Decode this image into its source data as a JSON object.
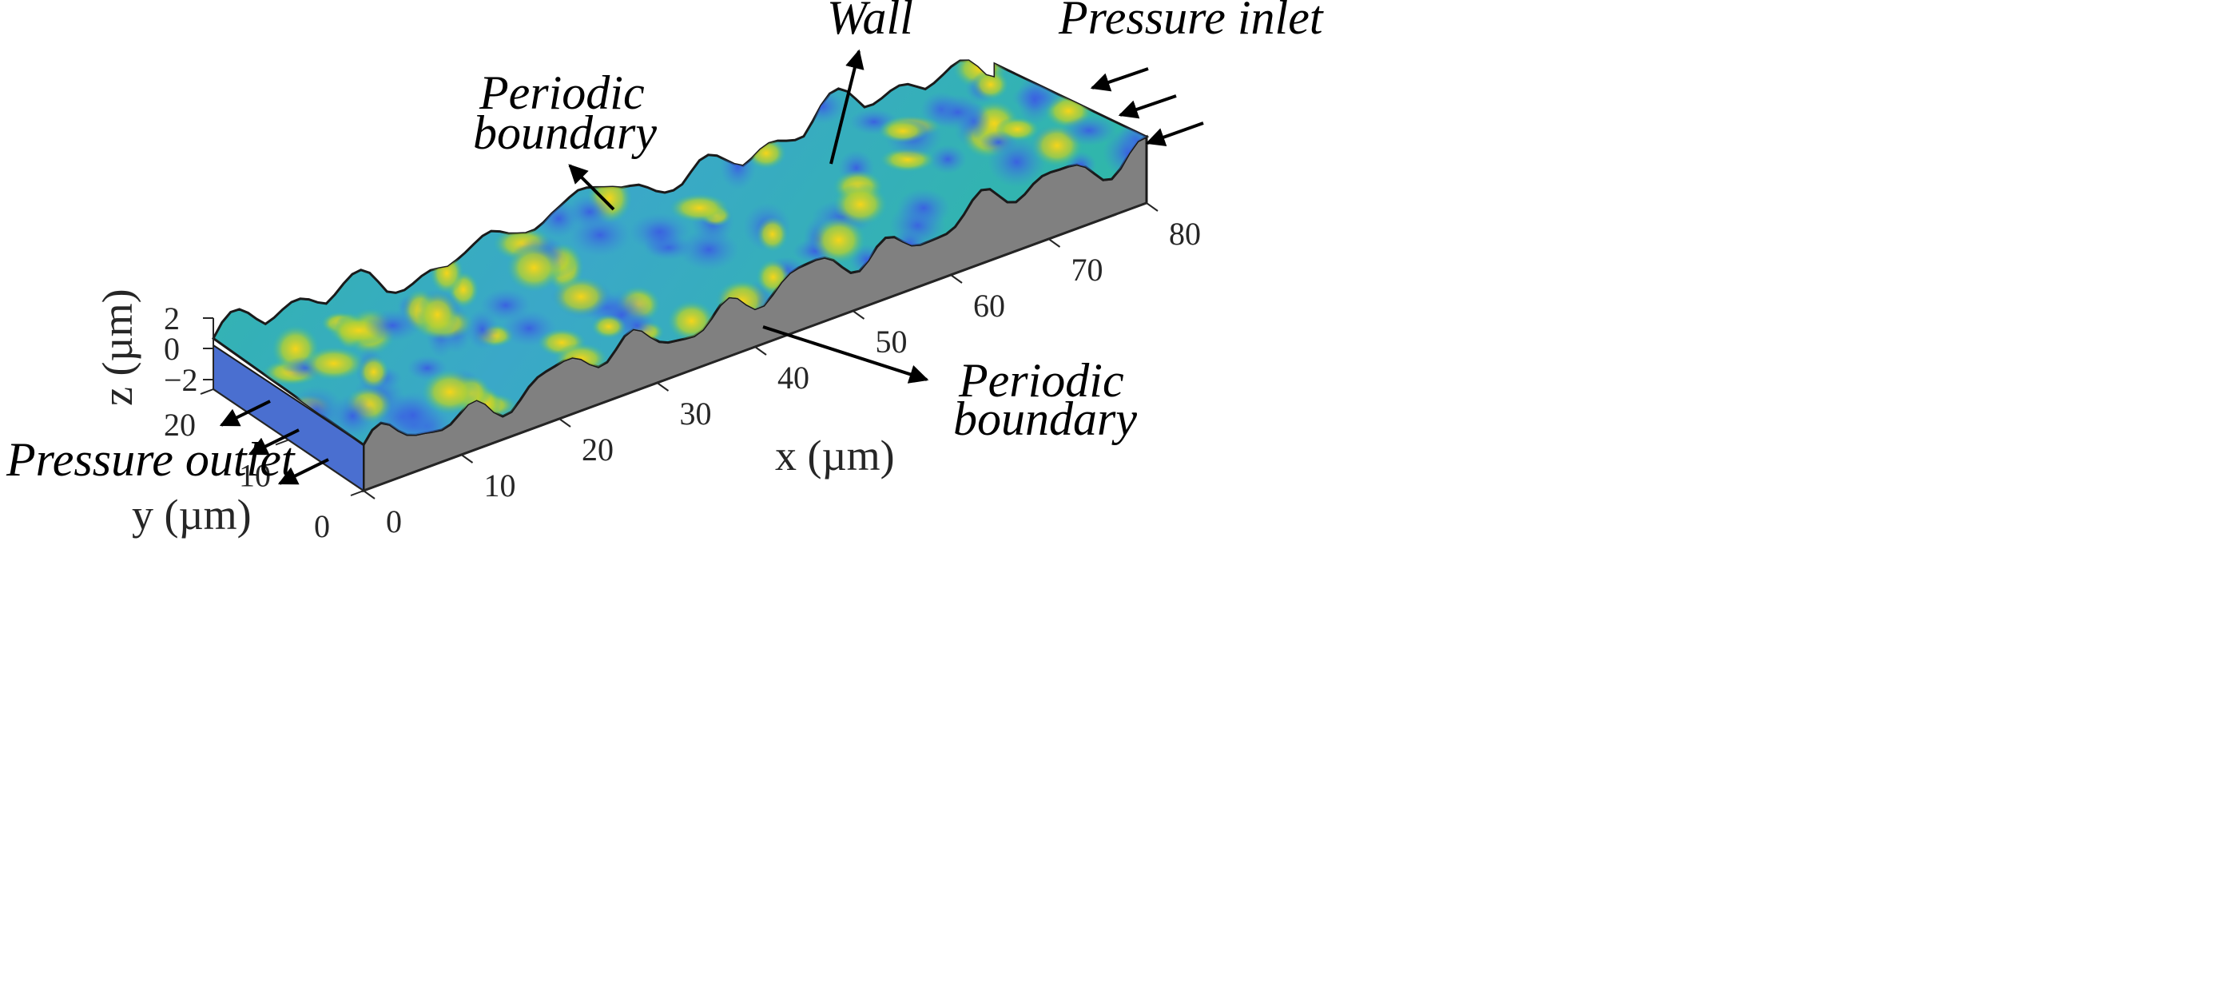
{
  "figure": {
    "annotations": {
      "wall": "Wall",
      "pressure_inlet": "Pressure inlet",
      "pressure_outlet": "Pressure outlet",
      "periodic_boundary_top_line1": "Periodic",
      "periodic_boundary_top_line2": "boundary",
      "periodic_boundary_side_line1": "Periodic",
      "periodic_boundary_side_line2": "boundary"
    },
    "axes": {
      "x_label": "x (µm)",
      "y_label": "y (µm)",
      "z_label": "z (µm)",
      "x_ticks": [
        "0",
        "10",
        "20",
        "30",
        "40",
        "50",
        "60",
        "70",
        "80"
      ],
      "y_ticks": [
        "0",
        "10",
        "20"
      ],
      "z_ticks": [
        "2",
        "0",
        "−2"
      ]
    },
    "colors": {
      "surface_low": "#3b6fd8",
      "surface_mid": "#2bb3b8",
      "surface_high": "#f2d21a",
      "side_wall": "#7f7f7f",
      "outlet_face": "#4a6fd0"
    }
  }
}
